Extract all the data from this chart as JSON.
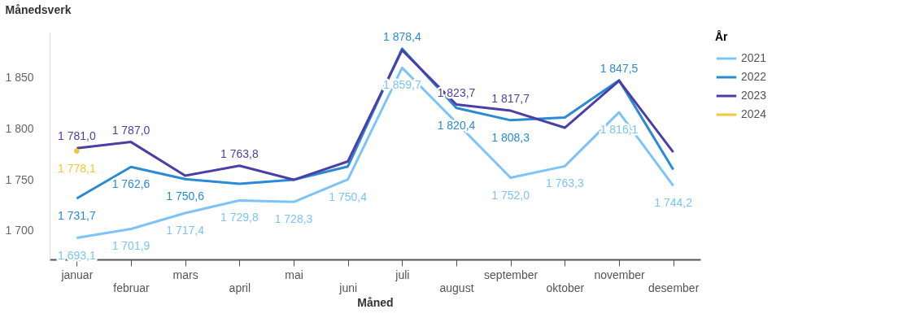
{
  "chart_data": {
    "type": "line",
    "xlabel": "Måned",
    "ylabel": "Månedsverk",
    "legend_title": "År",
    "legend": "right",
    "grid": false,
    "categories": [
      "januar",
      "februar",
      "mars",
      "april",
      "mai",
      "juni",
      "juli",
      "august",
      "september",
      "oktober",
      "november",
      "desember"
    ],
    "ylim": [
      1672,
      1895
    ],
    "yticks": [
      {
        "value": 1700,
        "label": "1 700"
      },
      {
        "value": 1750,
        "label": "1 750"
      },
      {
        "value": 1800,
        "label": "1 800"
      },
      {
        "value": 1850,
        "label": "1 850"
      }
    ],
    "series": [
      {
        "name": "2021",
        "color": "#7cc4f7",
        "values": [
          1693.1,
          1701.9,
          1717.4,
          1729.8,
          1728.3,
          1750.4,
          1859.7,
          1806,
          1752.0,
          1763.3,
          1816.1,
          1744.2
        ],
        "value_labels": [
          "1 693,1",
          "1 701,9",
          "1 717,4",
          "1 729,8",
          "1 728,3",
          "1 750,4",
          "1 859,7",
          null,
          "1 752,0",
          "1 763,3",
          "1 816,1",
          "1 744,2"
        ]
      },
      {
        "name": "2022",
        "color": "#2a8ad4",
        "values": [
          1731.7,
          1762.6,
          1750.6,
          1746,
          1750,
          1763,
          1878.4,
          1820.4,
          1808.3,
          1811,
          1847.5,
          1760
        ],
        "value_labels": [
          "1 731,7",
          "1 762,6",
          "1 750,6",
          null,
          null,
          null,
          "1 878,4",
          "1 820,4",
          "1 808,3",
          null,
          "1 847,5",
          null
        ]
      },
      {
        "name": "2023",
        "color": "#4a3fa6",
        "values": [
          1781.0,
          1787.0,
          1754,
          1763.8,
          1750,
          1768,
          1877,
          1823.7,
          1817.7,
          1801,
          1847,
          1777
        ],
        "value_labels": [
          "1 781,0",
          "1 787,0",
          null,
          "1 763,8",
          null,
          null,
          null,
          "1 823,7",
          "1 817,7",
          null,
          null,
          null
        ]
      },
      {
        "name": "2024",
        "color": "#f7c531",
        "marker": "circle",
        "values": [
          1778.1,
          null,
          null,
          null,
          null,
          null,
          null,
          null,
          null,
          null,
          null,
          null
        ],
        "value_labels": [
          "1 778,1",
          null,
          null,
          null,
          null,
          null,
          null,
          null,
          null,
          null,
          null,
          null
        ]
      }
    ]
  }
}
